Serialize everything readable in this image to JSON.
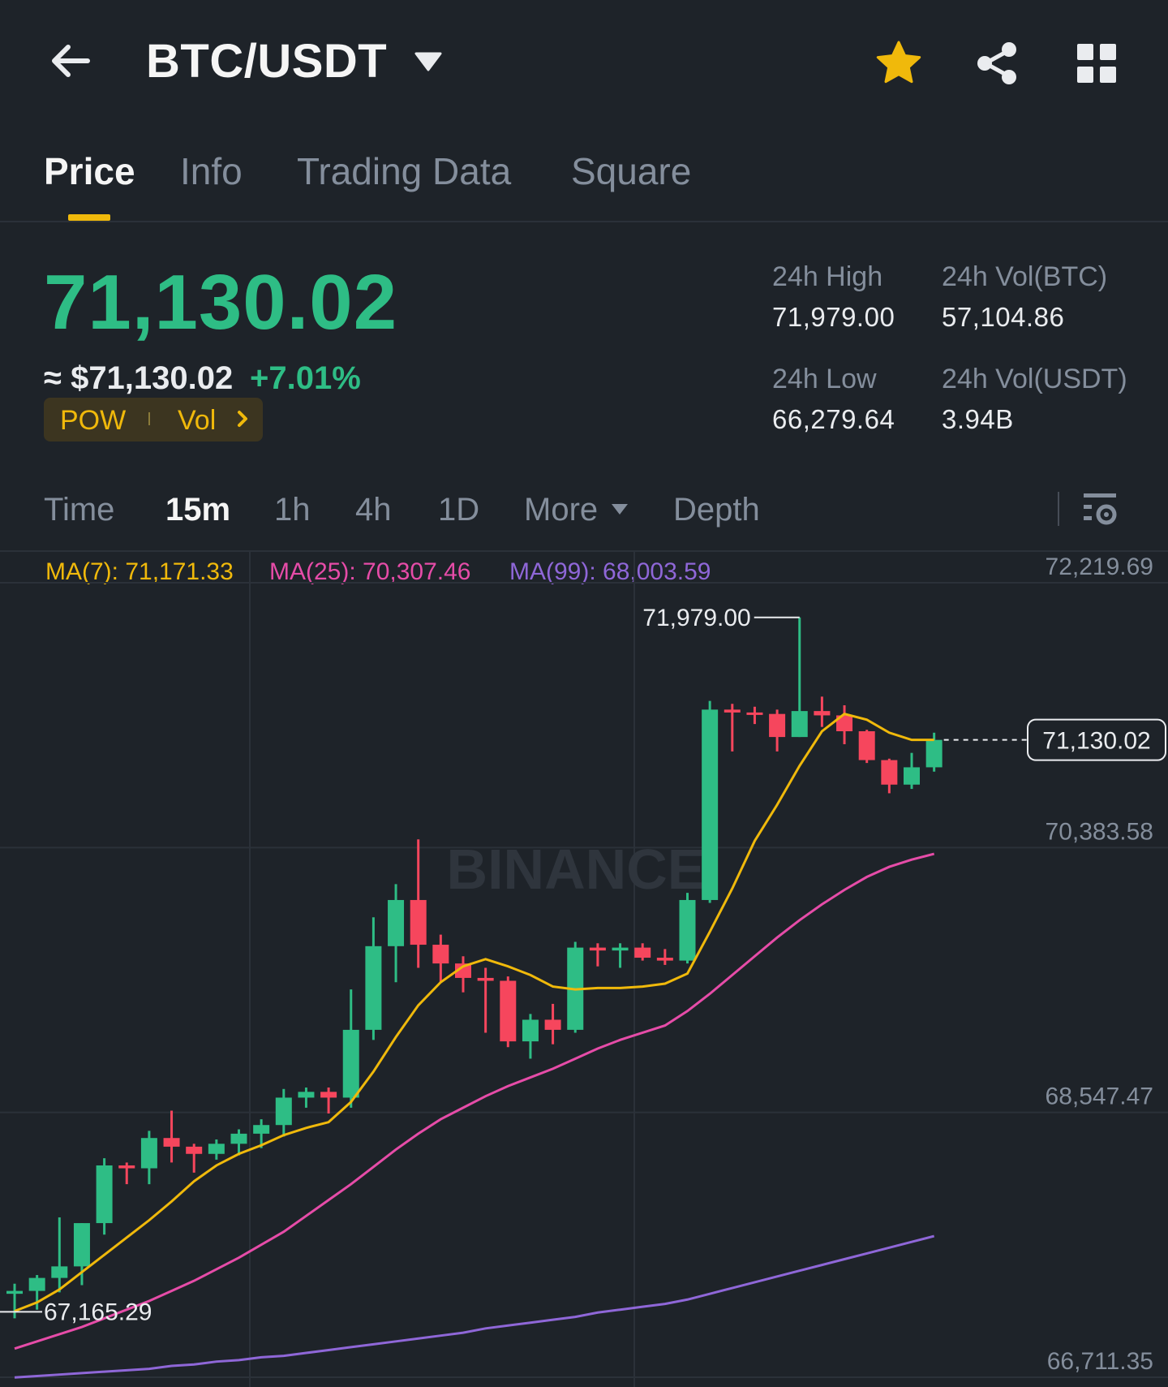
{
  "header": {
    "pair": "BTC/USDT",
    "icons": [
      "back-arrow-icon",
      "caret-down-icon",
      "star-icon",
      "share-icon",
      "grid-icon"
    ],
    "star_color": "#f0b90b"
  },
  "tabs": [
    {
      "label": "Price",
      "active": true
    },
    {
      "label": "Info",
      "active": false
    },
    {
      "label": "Trading Data",
      "active": false
    },
    {
      "label": "Square",
      "active": false
    }
  ],
  "ticker": {
    "last_price": "71,130.02",
    "usd_price": "≈ $71,130.02",
    "change": "+7.01%",
    "tag1": "POW",
    "tag2": "Vol",
    "stats": {
      "high_label": "24h High",
      "high_value": "71,979.00",
      "vol_btc_label": "24h Vol(BTC)",
      "vol_btc_value": "57,104.86",
      "low_label": "24h Low",
      "low_value": "66,279.64",
      "vol_usdt_label": "24h Vol(USDT)",
      "vol_usdt_value": "3.94B"
    },
    "up_color": "#2ebd85",
    "down_color": "#f6465d"
  },
  "timeframes": {
    "items": [
      "Time",
      "15m",
      "1h",
      "4h",
      "1D",
      "More",
      "Depth"
    ],
    "active": "15m"
  },
  "ma_legend": {
    "ma7": "MA(7): 71,171.33",
    "ma25": "MA(25): 70,307.46",
    "ma99": "MA(99): 68,003.59",
    "ma7_color": "#f0b90b",
    "ma25_color": "#e64ca8",
    "ma99_color": "#8f67d8"
  },
  "chart_data": {
    "type": "candlestick",
    "interval": "15m",
    "y_ticks": [
      "72,219.69",
      "70,383.58",
      "68,547.47",
      "66,711.35"
    ],
    "ylim": [
      66711.35,
      72219.69
    ],
    "high_label": "71,979.00",
    "low_label": "67,165.29",
    "last_price_label": "71,130.02",
    "watermark": "BINANCE",
    "candles": [
      {
        "o": 67290,
        "h": 67360,
        "l": 67120,
        "c": 67310
      },
      {
        "o": 67310,
        "h": 67420,
        "l": 67180,
        "c": 67400
      },
      {
        "o": 67400,
        "h": 67820,
        "l": 67300,
        "c": 67480
      },
      {
        "o": 67480,
        "h": 67780,
        "l": 67350,
        "c": 67780
      },
      {
        "o": 67780,
        "h": 68230,
        "l": 67700,
        "c": 68180
      },
      {
        "o": 68180,
        "h": 68200,
        "l": 68050,
        "c": 68160
      },
      {
        "o": 68160,
        "h": 68420,
        "l": 68050,
        "c": 68370
      },
      {
        "o": 68370,
        "h": 68560,
        "l": 68200,
        "c": 68310
      },
      {
        "o": 68310,
        "h": 68330,
        "l": 68130,
        "c": 68260
      },
      {
        "o": 68260,
        "h": 68360,
        "l": 68220,
        "c": 68330
      },
      {
        "o": 68330,
        "h": 68430,
        "l": 68250,
        "c": 68400
      },
      {
        "o": 68400,
        "h": 68500,
        "l": 68300,
        "c": 68460
      },
      {
        "o": 68460,
        "h": 68710,
        "l": 68380,
        "c": 68650
      },
      {
        "o": 68650,
        "h": 68720,
        "l": 68580,
        "c": 68690
      },
      {
        "o": 68690,
        "h": 68720,
        "l": 68540,
        "c": 68650
      },
      {
        "o": 68650,
        "h": 69400,
        "l": 68580,
        "c": 69120
      },
      {
        "o": 69120,
        "h": 69900,
        "l": 69050,
        "c": 69700
      },
      {
        "o": 69700,
        "h": 70130,
        "l": 69450,
        "c": 70020
      },
      {
        "o": 70020,
        "h": 70440,
        "l": 69550,
        "c": 69710
      },
      {
        "o": 69710,
        "h": 69780,
        "l": 69450,
        "c": 69580
      },
      {
        "o": 69580,
        "h": 69630,
        "l": 69380,
        "c": 69480
      },
      {
        "o": 69480,
        "h": 69550,
        "l": 69100,
        "c": 69460
      },
      {
        "o": 69460,
        "h": 69490,
        "l": 69000,
        "c": 69040
      },
      {
        "o": 69040,
        "h": 69230,
        "l": 68920,
        "c": 69190
      },
      {
        "o": 69190,
        "h": 69300,
        "l": 69020,
        "c": 69120
      },
      {
        "o": 69120,
        "h": 69730,
        "l": 69100,
        "c": 69690
      },
      {
        "o": 69690,
        "h": 69720,
        "l": 69560,
        "c": 69670
      },
      {
        "o": 69670,
        "h": 69720,
        "l": 69550,
        "c": 69690
      },
      {
        "o": 69690,
        "h": 69720,
        "l": 69600,
        "c": 69620
      },
      {
        "o": 69620,
        "h": 69680,
        "l": 69570,
        "c": 69600
      },
      {
        "o": 69600,
        "h": 70070,
        "l": 69580,
        "c": 70020
      },
      {
        "o": 70020,
        "h": 71400,
        "l": 70000,
        "c": 71340
      },
      {
        "o": 71340,
        "h": 71380,
        "l": 71050,
        "c": 71320
      },
      {
        "o": 71320,
        "h": 71360,
        "l": 71240,
        "c": 71310
      },
      {
        "o": 71310,
        "h": 71340,
        "l": 71050,
        "c": 71150
      },
      {
        "o": 71150,
        "h": 71979,
        "l": 71150,
        "c": 71330
      },
      {
        "o": 71330,
        "h": 71430,
        "l": 71220,
        "c": 71300
      },
      {
        "o": 71300,
        "h": 71370,
        "l": 71100,
        "c": 71190
      },
      {
        "o": 71190,
        "h": 71200,
        "l": 70970,
        "c": 70990
      },
      {
        "o": 70990,
        "h": 71000,
        "l": 70760,
        "c": 70820
      },
      {
        "o": 70820,
        "h": 71040,
        "l": 70790,
        "c": 70940
      },
      {
        "o": 70940,
        "h": 71180,
        "l": 70910,
        "c": 71130
      }
    ],
    "ma7": [
      67170,
      67230,
      67320,
      67440,
      67560,
      67680,
      67800,
      67930,
      68070,
      68180,
      68260,
      68320,
      68390,
      68440,
      68480,
      68620,
      68830,
      69070,
      69290,
      69450,
      69560,
      69610,
      69560,
      69500,
      69420,
      69400,
      69410,
      69410,
      69420,
      69440,
      69510,
      69800,
      70100,
      70430,
      70680,
      70950,
      71190,
      71310,
      71270,
      71180,
      71130,
      71130
    ],
    "ma25": [
      66910,
      66960,
      67010,
      67060,
      67120,
      67180,
      67240,
      67310,
      67380,
      67460,
      67540,
      67630,
      67720,
      67830,
      67940,
      68050,
      68170,
      68290,
      68400,
      68500,
      68580,
      68660,
      68730,
      68790,
      68850,
      68920,
      68990,
      69050,
      69100,
      69150,
      69250,
      69370,
      69500,
      69630,
      69760,
      69880,
      69990,
      70090,
      70180,
      70250,
      70300,
      70340
    ],
    "ma99": [
      66710,
      66720,
      66730,
      66740,
      66750,
      66760,
      66770,
      66790,
      66800,
      66820,
      66830,
      66850,
      66860,
      66880,
      66900,
      66920,
      66940,
      66960,
      66980,
      67000,
      67020,
      67050,
      67070,
      67090,
      67110,
      67130,
      67160,
      67180,
      67200,
      67220,
      67250,
      67290,
      67330,
      67370,
      67410,
      67450,
      67490,
      67530,
      67570,
      67610,
      67650,
      67690
    ]
  }
}
